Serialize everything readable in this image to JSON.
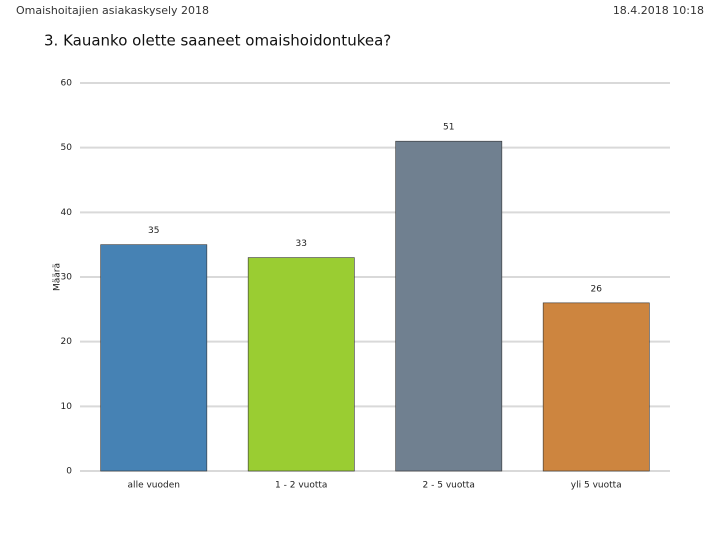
{
  "header": {
    "title": "Omaishoitajien asiakaskysely 2018",
    "date": "18.4.2018 10:18"
  },
  "chart_data": {
    "type": "bar",
    "title": "3. Kauanko olette saaneet omaishoidontukea?",
    "y_label": "Määrä",
    "categories": [
      "alle vuoden",
      "1 - 2 vuotta",
      "2 - 5 vuotta",
      "yli 5 vuotta"
    ],
    "values": [
      35,
      33,
      51,
      26
    ],
    "colors": [
      "#4682b4",
      "#9acd32",
      "#708090",
      "#cd853f"
    ],
    "ylim": [
      0,
      60
    ],
    "yticks": [
      0,
      10,
      20,
      30,
      40,
      50,
      60
    ],
    "grid": true
  }
}
